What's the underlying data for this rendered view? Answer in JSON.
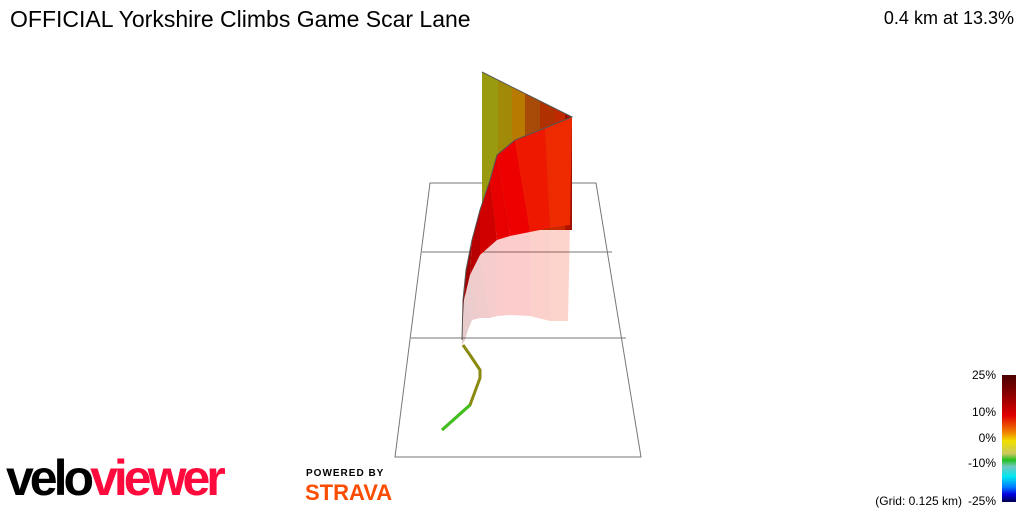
{
  "header": {
    "title": "OFFICIAL Yorkshire Climbs Game Scar Lane",
    "summary": "0.4 km at 13.3%"
  },
  "legend": {
    "labels": [
      "25%",
      "10%",
      "0%",
      "-10%",
      "-25%"
    ],
    "grid_note": "(Grid: 0.125 km)",
    "colors": [
      "#4a0000",
      "#e00000",
      "#f0e000",
      "#20c020",
      "#00e8f0",
      "#0000e0",
      "#000050"
    ]
  },
  "branding": {
    "logo_part1": "velo",
    "logo_part2": "viewer",
    "powered_by": "POWERED BY",
    "strava": "STRAVA"
  }
}
